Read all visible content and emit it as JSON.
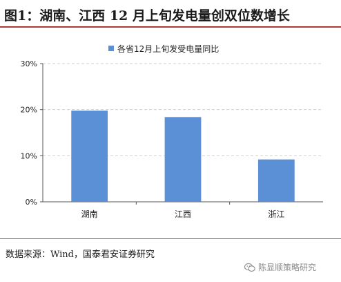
{
  "header": {
    "title": "图1：湖南、江西 12 月上旬发电量创双位数增长"
  },
  "chart_data": {
    "type": "bar",
    "title": "",
    "legend": {
      "label": "各省12月上旬发受电量同比",
      "position": "top"
    },
    "categories": [
      "湖南",
      "江西",
      "浙江"
    ],
    "series": [
      {
        "name": "各省12月上旬发受电量同比",
        "values": [
          19.8,
          18.4,
          9.2
        ]
      }
    ],
    "y_ticks": [
      "0%",
      "10%",
      "20%",
      "30%"
    ],
    "ylim": [
      0,
      30
    ],
    "unit": "%",
    "grid": true,
    "bar_color": "#5b8fd6"
  },
  "footer": {
    "source": "数据来源：Wind，国泰君安证券研究",
    "watermark": "陈显顺策略研究"
  }
}
